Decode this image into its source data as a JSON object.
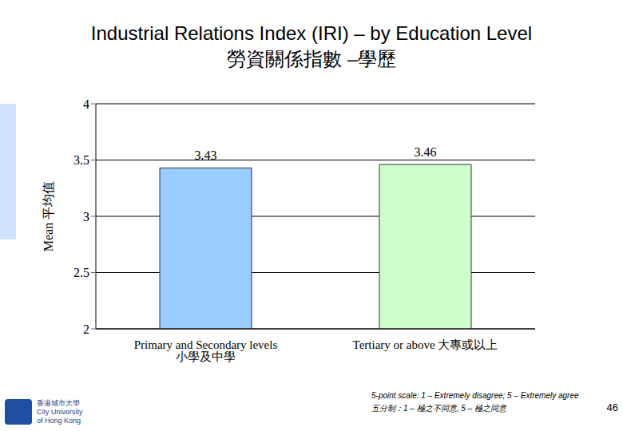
{
  "chart_data": {
    "type": "bar",
    "title": "Industrial Relations Index (IRI) – by Education Level",
    "subtitle": "勞資關係指數 –學歷",
    "y_label": "Mean 平均值",
    "categories": [
      "Primary and Secondary levels 小學及中學",
      "Tertiary or above 大專或以上"
    ],
    "values": [
      3.43,
      3.46
    ],
    "colors": [
      "#99ccff",
      "#ccffcc"
    ],
    "ylim": [
      2,
      4
    ],
    "yticks": [
      2,
      2.5,
      3,
      3.5,
      4
    ],
    "grid": true,
    "data_labels": true,
    "footnote": [
      "5-point scale: 1 – Extremely disagree; 5 – Extremely agree",
      "五分制：1 – 極之不同意, 5 – 極之同意"
    ],
    "logo": [
      "香港城市大學",
      "City University",
      "of Hong Kong"
    ],
    "page_number": 46
  }
}
